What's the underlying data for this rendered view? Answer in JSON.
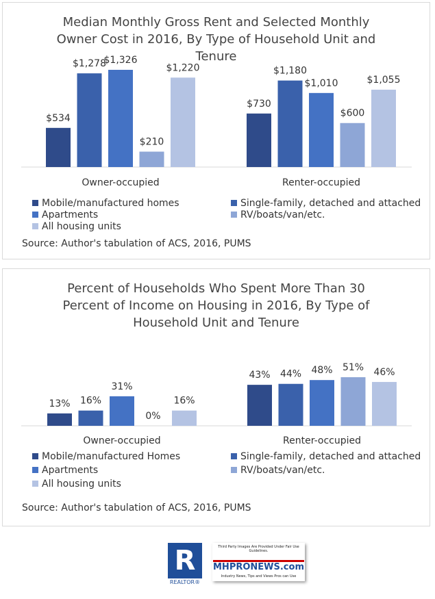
{
  "chart_data": [
    {
      "type": "bar",
      "title": "Median Monthly Gross Rent and Selected Monthly Owner Cost in 2016, By Type of Household Unit and Tenure",
      "categories": [
        "Owner-occupied",
        "Renter-occupied"
      ],
      "series": [
        {
          "name": "Mobile/manufactured homes",
          "color": "#2f4b8a",
          "values": [
            534,
            730
          ],
          "value_labels": [
            "$534",
            "$730"
          ]
        },
        {
          "name": "Single-family, detached and attached",
          "color": "#3a61ab",
          "values": [
            1278,
            1180
          ],
          "value_labels": [
            "$1,278",
            "$1,180"
          ]
        },
        {
          "name": "Apartments",
          "color": "#4472c4",
          "values": [
            1326,
            1010
          ],
          "value_labels": [
            "$1,326",
            "$1,010"
          ]
        },
        {
          "name": "RV/boats/van/etc.",
          "color": "#8ea6d6",
          "values": [
            210,
            600
          ],
          "value_labels": [
            "$210",
            "$600"
          ]
        },
        {
          "name": "All housing units",
          "color": "#b4c3e3",
          "values": [
            1220,
            1055
          ],
          "value_labels": [
            "$1,220",
            "$1,055"
          ]
        }
      ],
      "source": "Source: Author's tabulation of ACS, 2016, PUMS"
    },
    {
      "type": "bar",
      "title": "Percent of Households Who Spent More Than 30 Percent of Income on Housing in 2016, By Type of Household Unit and Tenure",
      "categories": [
        "Owner-occupied",
        "Renter-occupied"
      ],
      "series": [
        {
          "name": "Mobile/manufactured Homes",
          "color": "#2f4b8a",
          "values": [
            13,
            43
          ],
          "value_labels": [
            "13%",
            "43%"
          ]
        },
        {
          "name": "Single-family, detached and attached",
          "color": "#3a61ab",
          "values": [
            16,
            44
          ],
          "value_labels": [
            "16%",
            "44%"
          ]
        },
        {
          "name": "Apartments",
          "color": "#4472c4",
          "values": [
            31,
            48
          ],
          "value_labels": [
            "31%",
            "48%"
          ]
        },
        {
          "name": "RV/boats/van/etc.",
          "color": "#8ea6d6",
          "values": [
            0,
            51
          ],
          "value_labels": [
            "0%",
            "51%"
          ]
        },
        {
          "name": "All housing units",
          "color": "#b4c3e3",
          "values": [
            16,
            46
          ],
          "value_labels": [
            "16%",
            "46%"
          ]
        }
      ],
      "source": "Source: Author's tabulation of ACS, 2016, PUMS"
    }
  ],
  "logos": {
    "realtor_mark": "R",
    "realtor_name": "REALTOR®",
    "mh_notice": "Third Party Images Are Provided Under Fair Use Guidelines.",
    "mh_brand": "MHPRONEWS.com",
    "mh_tagline": "Industry News, Tips and Views Pros can Use"
  }
}
